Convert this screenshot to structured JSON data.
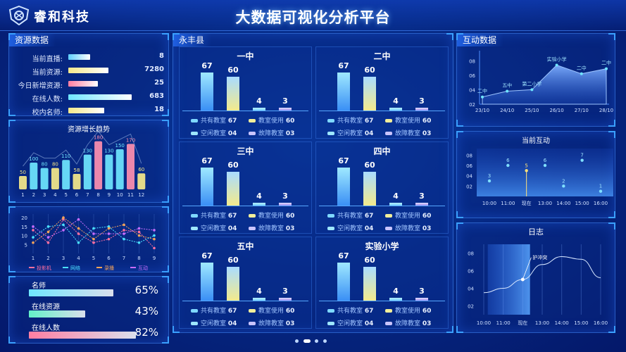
{
  "header": {
    "brand": "睿和科技",
    "title": "大数据可视化分析平台"
  },
  "resource_panel": {
    "title": "资源数据",
    "items": [
      {
        "label": "当前直播:",
        "value": "8",
        "fraction": 0.28,
        "color": "#5fd0ff"
      },
      {
        "label": "当前资源:",
        "value": "7280",
        "fraction": 0.52,
        "color": "#f6e98a"
      },
      {
        "label": "今日新增资源:",
        "value": "25",
        "fraction": 0.38,
        "color": "#ff7ea2"
      },
      {
        "label": "在线人数:",
        "value": "683",
        "fraction": 0.82,
        "color": "#6fe6ff"
      },
      {
        "label": "校内名师:",
        "value": "18",
        "fraction": 0.46,
        "color": "#f6e98a"
      }
    ]
  },
  "growth_chart": {
    "title": "资源增长趋势",
    "chart_data": {
      "type": "bar",
      "categories": [
        "1",
        "2",
        "3",
        "4",
        "5",
        "6",
        "7",
        "8",
        "9",
        "10",
        "11",
        "12"
      ],
      "values": [
        50,
        100,
        80,
        80,
        110,
        58,
        130,
        180,
        130,
        150,
        170,
        60
      ],
      "colors": [
        "#f6e98a",
        "#6fe6ff",
        "#6fe6ff",
        "#f6e98a",
        "#6fe6ff",
        "#f6e98a",
        "#6fe6ff",
        "#ff8fb0",
        "#6fe6ff",
        "#6fe6ff",
        "#ff8fb0",
        "#f6e98a"
      ],
      "ylim": [
        0,
        200
      ]
    }
  },
  "multi_line_chart": {
    "chart_data": {
      "type": "line",
      "x": [
        "1",
        "2",
        "3",
        "4",
        "5",
        "6",
        "7",
        "8",
        "9"
      ],
      "yticks": [
        "5",
        "10",
        "15",
        "20"
      ],
      "ylim": [
        0,
        22
      ],
      "series": [
        {
          "name": "投影机",
          "color": "#ff6fa0",
          "values": [
            13,
            6,
            19,
            11,
            6,
            8,
            13,
            12,
            3
          ]
        },
        {
          "name": "网络",
          "color": "#4be0ff",
          "values": [
            9,
            15,
            16,
            6,
            14,
            15,
            8,
            6,
            10
          ]
        },
        {
          "name": "录播",
          "color": "#f5a35a",
          "values": [
            6,
            12,
            20,
            14,
            8,
            14,
            16,
            10,
            8
          ]
        },
        {
          "name": "互动",
          "color": "#c86dff",
          "values": [
            15,
            9,
            13,
            19,
            11,
            11,
            11,
            14,
            13
          ]
        }
      ]
    }
  },
  "percent_panel": {
    "items": [
      {
        "label": "名师",
        "value": "65%",
        "fraction": 0.65,
        "color": "#6fe6ff"
      },
      {
        "label": "在线资源",
        "value": "43%",
        "fraction": 0.43,
        "color": "#63f0c8"
      },
      {
        "label": "在线人数",
        "value": "82%",
        "fraction": 0.82,
        "color": "#ff7ea2"
      }
    ]
  },
  "county_panel": {
    "title": "永丰县",
    "legend_labels": [
      "共有教室",
      "教室使用",
      "空闲教室",
      "故障教室"
    ],
    "legend_colors": [
      "#7fd8ff",
      "#f2ee9a",
      "#9ee7ff",
      "#c9c4ff"
    ],
    "schools": [
      {
        "name": "一中",
        "bar_values": [
          67,
          60,
          4,
          3
        ],
        "bar_labels": [
          "67",
          "60",
          "4",
          "3"
        ],
        "legend_values": [
          "67",
          "60",
          "04",
          "03"
        ]
      },
      {
        "name": "二中",
        "bar_values": [
          67,
          60,
          4,
          3
        ],
        "bar_labels": [
          "67",
          "60",
          "4",
          "3"
        ],
        "legend_values": [
          "67",
          "60",
          "04",
          "03"
        ]
      },
      {
        "name": "三中",
        "bar_values": [
          67,
          60,
          4,
          3
        ],
        "bar_labels": [
          "67",
          "60",
          "4",
          "3"
        ],
        "legend_values": [
          "67",
          "60",
          "04",
          "03"
        ]
      },
      {
        "name": "四中",
        "bar_values": [
          67,
          60,
          4,
          3
        ],
        "bar_labels": [
          "67",
          "60",
          "4",
          "3"
        ],
        "legend_values": [
          "67",
          "60",
          "04",
          "03"
        ]
      },
      {
        "name": "五中",
        "bar_values": [
          67,
          60,
          4,
          3
        ],
        "bar_labels": [
          "67",
          "60",
          "4",
          "3"
        ],
        "legend_values": [
          "67",
          "60",
          "04",
          "03"
        ]
      },
      {
        "name": "实验小学",
        "bar_values": [
          67,
          60,
          4,
          3
        ],
        "bar_labels": [
          "67",
          "60",
          "4",
          "3"
        ],
        "legend_values": [
          "67",
          "60",
          "04",
          "03"
        ]
      }
    ]
  },
  "interaction_panel": {
    "title": "互动数据",
    "chart_data": {
      "type": "area",
      "x": [
        "23/10",
        "24/10",
        "25/10",
        "26/10",
        "27/10",
        "28/10"
      ],
      "values": [
        3.0,
        3.8,
        4.0,
        7.4,
        6.2,
        6.9
      ],
      "point_labels": [
        "二中",
        "五中",
        "第二小学",
        "实验小学",
        "二中",
        "二中"
      ],
      "yticks": [
        "02",
        "04",
        "06",
        "08"
      ],
      "ylim": [
        2,
        9
      ]
    }
  },
  "current_interaction": {
    "title": "当前互动",
    "chart_data": {
      "type": "scatter",
      "x": [
        "10:00",
        "11:00",
        "现在",
        "13:00",
        "14:00",
        "15:00",
        "16:00"
      ],
      "values": [
        3,
        6,
        5,
        6,
        2,
        7,
        1
      ],
      "point_labels": [
        "3",
        "6",
        "5",
        "6",
        "2",
        "7",
        "1"
      ],
      "yticks": [
        "02",
        "04",
        "06",
        "08"
      ],
      "ylim": [
        0,
        9
      ]
    }
  },
  "log_panel": {
    "title": "日志",
    "chart_data": {
      "type": "line",
      "x": [
        "10:00",
        "11:00",
        "现在",
        "13:00",
        "14:00",
        "15:00",
        "16:00"
      ],
      "yticks": [
        "02",
        "04",
        "06",
        "08"
      ],
      "ylim": [
        1,
        9
      ],
      "highlight": "护冲突",
      "values": [
        3.5,
        4.0,
        5.0,
        6.7,
        7.6,
        7.3,
        5.2
      ]
    }
  },
  "colors": {
    "accent": "#3aa0ff",
    "background": "#062a86"
  }
}
